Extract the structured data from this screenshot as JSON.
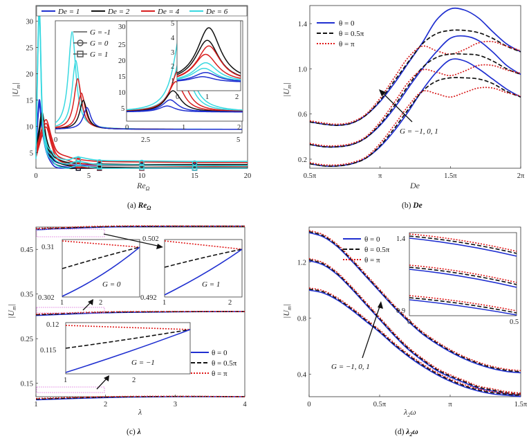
{
  "chart_data": [
    {
      "panel": "a",
      "type": "line",
      "caption": "(a) Re_Ω",
      "xlabel": "Re_Ω",
      "ylabel": "|U_m|",
      "xlim": [
        0,
        20
      ],
      "ylim": [
        2,
        33
      ],
      "xticks": [
        "0",
        "5",
        "10",
        "15",
        "20"
      ],
      "yticks": [
        "5",
        "10",
        "15",
        "20",
        "25",
        "30"
      ],
      "legend_De": [
        {
          "name": "De = 1",
          "color": "#1f2fd0"
        },
        {
          "name": "De = 2",
          "color": "#111111"
        },
        {
          "name": "De = 4",
          "color": "#d81e1e"
        },
        {
          "name": "De = 6",
          "color": "#38d8e0"
        }
      ],
      "legend_G": [
        {
          "name": "G = -1",
          "marker": "none"
        },
        {
          "name": "G = 0",
          "marker": "circle"
        },
        {
          "name": "G = 1",
          "marker": "square"
        }
      ],
      "insets": [
        {
          "xticks": [
            "0",
            "2.5",
            "5"
          ],
          "xlim": [
            0,
            5
          ],
          "ylim": [
            2,
            33
          ]
        },
        {
          "xticks": [
            "0",
            "1",
            "2"
          ],
          "yticks": [
            "5",
            "10",
            "15",
            "20",
            "25",
            "30"
          ],
          "xlim": [
            0,
            2
          ],
          "ylim": [
            0,
            33
          ]
        },
        {
          "xticks": [
            "0",
            "1",
            "2"
          ],
          "yticks": [
            "1",
            "2",
            "3",
            "4",
            "5"
          ],
          "xlim": [
            0,
            2
          ],
          "ylim": [
            0,
            5
          ]
        }
      ],
      "series": [
        {
          "name": "De = 1",
          "x": [
            0,
            0.3,
            0.6,
            1,
            1.5,
            2,
            3,
            4,
            6,
            10,
            15,
            20
          ],
          "values": [
            5.2,
            14.5,
            9.5,
            5.5,
            3.4,
            2.6,
            2.2,
            2.1,
            2.05,
            2.0,
            2.0,
            2.0
          ]
        },
        {
          "name": "De = 2",
          "x": [
            0,
            0.3,
            0.6,
            1,
            1.5,
            2,
            3,
            4,
            6,
            10,
            15,
            20
          ],
          "values": [
            5.0,
            9,
            12,
            7,
            4.2,
            3.2,
            2.5,
            2.3,
            2.2,
            2.1,
            2.1,
            2.1
          ]
        },
        {
          "name": "De = 4",
          "x": [
            0,
            0.3,
            0.6,
            1,
            1.5,
            2,
            3,
            4,
            6,
            10,
            15,
            20
          ],
          "values": [
            4.8,
            7,
            9,
            10.5,
            7,
            4.5,
            3.5,
            3.0,
            2.6,
            2.5,
            2.4,
            2.4
          ]
        },
        {
          "name": "De = 6",
          "x": [
            0,
            0.3,
            0.6,
            1,
            1.5,
            2,
            3,
            4,
            6,
            10,
            15,
            20
          ],
          "values": [
            4.6,
            32,
            12,
            6,
            4.4,
            3.3,
            2.8,
            3.3,
            2.7,
            2.6,
            2.5,
            2.5
          ]
        }
      ]
    },
    {
      "panel": "b",
      "type": "line",
      "caption": "(b) De",
      "xlabel": "De",
      "ylabel": "|U_m|",
      "xlim": [
        0.5,
        2.0
      ],
      "ylim": [
        0.12,
        1.56
      ],
      "xticks": [
        "0.5π",
        "π",
        "1.5π",
        "2π"
      ],
      "yticks": [
        "0.2",
        "0.6",
        "1.0",
        "1.4"
      ],
      "legend": [
        {
          "name": "θ = 0",
          "color": "#1f2fd0",
          "dash": "solid"
        },
        {
          "name": "θ = 0.5π",
          "color": "#111111",
          "dash": "dashed"
        },
        {
          "name": "θ = π",
          "color": "#e01818",
          "dash": "dotted"
        }
      ],
      "annotation": "G = −1, 0, 1",
      "x": [
        0.5,
        0.6,
        0.7,
        0.8,
        0.9,
        1.0,
        1.1,
        1.2,
        1.3,
        1.4,
        1.5,
        1.6,
        1.7,
        1.8,
        1.9,
        2.0
      ],
      "series": [
        {
          "name": "θ = 0, G = 1",
          "values": [
            0.53,
            0.51,
            0.5,
            0.52,
            0.59,
            0.71,
            0.87,
            1.05,
            1.23,
            1.43,
            1.53,
            1.52,
            1.45,
            1.33,
            1.22,
            1.15
          ]
        },
        {
          "name": "θ = 0.5π, G = 1",
          "values": [
            0.53,
            0.51,
            0.5,
            0.52,
            0.59,
            0.72,
            0.89,
            1.06,
            1.22,
            1.31,
            1.34,
            1.34,
            1.32,
            1.27,
            1.2,
            1.15
          ]
        },
        {
          "name": "θ = π, G = 1",
          "values": [
            0.54,
            0.52,
            0.51,
            0.53,
            0.6,
            0.74,
            0.92,
            1.1,
            1.2,
            1.16,
            1.13,
            1.17,
            1.23,
            1.24,
            1.2,
            1.16
          ]
        },
        {
          "name": "θ = 0, G = 0",
          "values": [
            0.33,
            0.31,
            0.31,
            0.33,
            0.39,
            0.5,
            0.65,
            0.83,
            1.0,
            1.15,
            1.27,
            1.29,
            1.25,
            1.15,
            1.03,
            0.95
          ]
        },
        {
          "name": "θ = 0.5π, G = 0",
          "values": [
            0.33,
            0.31,
            0.31,
            0.33,
            0.39,
            0.51,
            0.67,
            0.85,
            1.01,
            1.1,
            1.13,
            1.13,
            1.12,
            1.07,
            1.0,
            0.95
          ]
        },
        {
          "name": "θ = π, G = 0",
          "values": [
            0.34,
            0.32,
            0.32,
            0.34,
            0.4,
            0.53,
            0.7,
            0.88,
            0.99,
            0.97,
            0.94,
            0.98,
            1.03,
            1.03,
            0.99,
            0.96
          ]
        },
        {
          "name": "θ = 0, G = −1",
          "values": [
            0.16,
            0.14,
            0.14,
            0.16,
            0.21,
            0.31,
            0.45,
            0.62,
            0.81,
            0.97,
            1.08,
            1.07,
            1.0,
            0.91,
            0.82,
            0.75
          ]
        },
        {
          "name": "θ = 0.5π, G = −1",
          "values": [
            0.16,
            0.14,
            0.14,
            0.16,
            0.21,
            0.32,
            0.47,
            0.64,
            0.8,
            0.89,
            0.92,
            0.92,
            0.91,
            0.87,
            0.8,
            0.75
          ]
        },
        {
          "name": "θ = π, G = −1",
          "values": [
            0.17,
            0.15,
            0.15,
            0.17,
            0.22,
            0.34,
            0.5,
            0.67,
            0.8,
            0.78,
            0.75,
            0.79,
            0.83,
            0.83,
            0.79,
            0.76
          ]
        }
      ]
    },
    {
      "panel": "c",
      "type": "line",
      "caption": "(c) λ",
      "xlabel": "λ",
      "ylabel": "|U_m|",
      "xlim": [
        1,
        4
      ],
      "ylim": [
        0.12,
        0.5
      ],
      "xticks": [
        "1",
        "2",
        "3",
        "4"
      ],
      "yticks": [
        "0.15",
        "0.25",
        "0.35",
        "0.45"
      ],
      "legend": [
        {
          "name": "θ = 0",
          "color": "#1f2fd0",
          "dash": "solid"
        },
        {
          "name": "θ = 0.5π",
          "color": "#111111",
          "dash": "dashed"
        },
        {
          "name": "θ = π",
          "color": "#e01818",
          "dash": "dotted"
        }
      ],
      "insets": [
        {
          "label": "G = 0",
          "yticks": [
            "0.302",
            "0.31"
          ],
          "xticks": [
            "1",
            "2"
          ],
          "ylim": [
            0.302,
            0.312
          ]
        },
        {
          "label": "G = 1",
          "yticks": [
            "0.492",
            "0.502"
          ],
          "xticks": [
            "1",
            "2"
          ],
          "ylim": [
            0.492,
            0.503
          ]
        },
        {
          "label": "G = −1",
          "yticks": [
            "0.115",
            "0.12"
          ],
          "xticks": [
            "1",
            "2"
          ],
          "ylim": [
            0.112,
            0.121
          ]
        }
      ],
      "series": [
        {
          "name": "G = 1",
          "x": [
            1,
            2,
            3,
            4
          ],
          "values": [
            0.494,
            0.5,
            0.5015,
            0.502
          ]
        },
        {
          "name": "G = 0",
          "x": [
            1,
            2,
            3,
            4
          ],
          "values": [
            0.302,
            0.308,
            0.31,
            0.311
          ]
        },
        {
          "name": "G = −1",
          "x": [
            1,
            2,
            3,
            4
          ],
          "values": [
            0.113,
            0.118,
            0.12,
            0.12
          ]
        }
      ]
    },
    {
      "panel": "d",
      "type": "line",
      "caption": "(d) λ2ω",
      "xlabel": "λ2ω",
      "ylabel": "|U_m|",
      "xlim": [
        0,
        1.5
      ],
      "ylim": [
        0.24,
        1.45
      ],
      "xticks": [
        "0",
        "0.5π",
        "π",
        "1.5π"
      ],
      "yticks": [
        "0.4",
        "0.8",
        "1.2"
      ],
      "legend": [
        {
          "name": "θ = 0",
          "color": "#1f2fd0",
          "dash": "solid"
        },
        {
          "name": "θ = 0.5π",
          "color": "#111111",
          "dash": "dashed"
        },
        {
          "name": "θ = π",
          "color": "#e01818",
          "dash": "dotted"
        }
      ],
      "annotation": "G = −1, 0, 1",
      "inset": {
        "xticks": [
          "0",
          "0.5"
        ],
        "yticks": [
          "0.9",
          "1.4"
        ],
        "xlim": [
          0,
          0.5
        ],
        "ylim": [
          0.85,
          1.43
        ]
      },
      "x": [
        0,
        0.1,
        0.2,
        0.3,
        0.4,
        0.5,
        0.6,
        0.7,
        0.8,
        0.9,
        1.0,
        1.1,
        1.2,
        1.3,
        1.4,
        1.5
      ],
      "series": [
        {
          "name": "G = 1",
          "values": [
            1.41,
            1.38,
            1.31,
            1.21,
            1.1,
            0.99,
            0.88,
            0.78,
            0.69,
            0.62,
            0.56,
            0.51,
            0.47,
            0.44,
            0.42,
            0.41
          ]
        },
        {
          "name": "G = 0",
          "values": [
            1.21,
            1.18,
            1.11,
            1.01,
            0.9,
            0.79,
            0.68,
            0.58,
            0.5,
            0.43,
            0.38,
            0.34,
            0.3,
            0.28,
            0.26,
            0.25
          ]
        },
        {
          "name": "G = −1",
          "values": [
            1.0,
            0.98,
            0.93,
            0.86,
            0.78,
            0.7,
            0.61,
            0.53,
            0.46,
            0.4,
            0.35,
            0.31,
            0.28,
            0.26,
            0.25,
            0.24
          ]
        }
      ]
    }
  ],
  "labels": {
    "a_axis_label": "Re",
    "a_axis_sub": "Ω",
    "a_cap_prefix": "(a) ",
    "a_cap_main": "Re",
    "a_cap_sub": "Ω",
    "b_axis_label": "De",
    "b_cap_prefix": "(b) ",
    "b_cap_main": "De",
    "c_axis_label": "λ",
    "c_cap_prefix": "(c) ",
    "c_cap_main": "λ",
    "d_axis_main": "λ",
    "d_axis_sub": "2",
    "d_axis_tail": "ω",
    "d_cap_prefix": "(d) ",
    "d_cap_main": "λ",
    "d_cap_sub": "2",
    "d_cap_tail": "ω",
    "ylabel_main": "|U",
    "ylabel_sub": "m",
    "ylabel_tail": "|",
    "b_annotation": "G = −1, 0, 1",
    "d_annotation": "G = −1, 0, 1",
    "c_inset1_label": "G = 0",
    "c_inset2_label": "G = 1",
    "c_inset3_label": "G = −1",
    "legend_theta0": "θ = 0",
    "legend_theta05": "θ = 0.5π",
    "legend_thetapi": "θ = π",
    "legend_De1": "De = 1",
    "legend_De2": "De = 2",
    "legend_De4": "De = 4",
    "legend_De6": "De = 6",
    "legend_Gm1": "G = -1",
    "legend_G0": "G = 0",
    "legend_G1": "G = 1"
  },
  "colors": {
    "blue": "#1f2fd0",
    "black": "#111111",
    "red": "#d81e1e",
    "cyan": "#38d8e0",
    "pinkbox": "#e080e0"
  }
}
